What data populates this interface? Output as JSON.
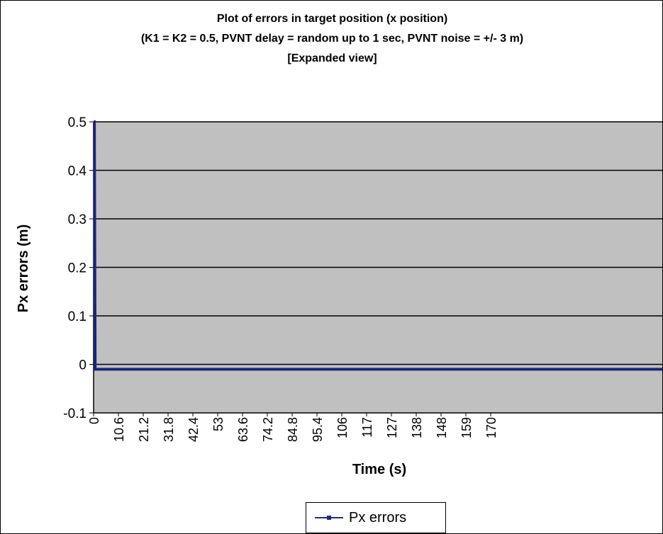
{
  "chart_data": {
    "type": "line",
    "title_lines": [
      "Plot of errors in target position (x position)",
      "(K1 = K2 = 0.5, PVNT delay = random up to 1 sec, PVNT noise = +/- 3 m)",
      "[Expanded view]"
    ],
    "xlabel": "Time (s)",
    "ylabel": "Px errors (m)",
    "ylim": [
      -0.1,
      0.5
    ],
    "y_ticks": [
      "-0.1",
      "0",
      "0.1",
      "0.2",
      "0.3",
      "0.4",
      "0.5"
    ],
    "x_tick_labels": [
      "0",
      "10.6",
      "21.2",
      "31.8",
      "42.4",
      "53",
      "63.6",
      "74.2",
      "84.8",
      "95.4",
      "106",
      "117",
      "127",
      "138",
      "148",
      "159",
      "170"
    ],
    "xlim": [
      0,
      180
    ],
    "grid": true,
    "legend_position": "bottom",
    "plot_background": "#c0c0c0",
    "series": [
      {
        "name": "Px errors",
        "color": "#1f2a8a",
        "x": [
          0,
          0.25,
          0.5,
          1,
          2,
          5,
          10,
          20,
          40,
          60,
          80,
          100,
          120,
          140,
          160,
          180
        ],
        "y": [
          0.5,
          0.5,
          -0.01,
          -0.01,
          -0.01,
          -0.01,
          -0.01,
          -0.01,
          -0.01,
          -0.01,
          -0.01,
          -0.01,
          -0.01,
          -0.01,
          -0.01,
          -0.01
        ]
      }
    ]
  }
}
